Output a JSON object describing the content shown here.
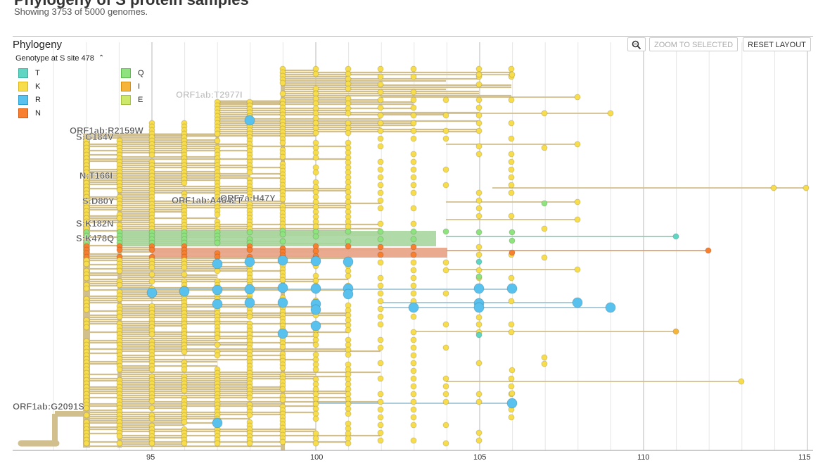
{
  "header": {
    "title": "Phylogeny of S protein samples",
    "subtitle": "Showing 3753 of 5000 genomes."
  },
  "panel": {
    "title": "Phylogeny",
    "legend_title": "Genotype at S site 478",
    "legend": [
      {
        "label": "T",
        "color": "#5fd6c4",
        "border": "#39b3a0"
      },
      {
        "label": "K",
        "color": "#f7dc4c",
        "border": "#d9b51a"
      },
      {
        "label": "R",
        "color": "#58c1ee",
        "border": "#2a9fd0"
      },
      {
        "label": "N",
        "color": "#f77f2e",
        "border": "#d45a0f"
      },
      {
        "label": "Q",
        "color": "#8fe37f",
        "border": "#5cb94b"
      },
      {
        "label": "I",
        "color": "#f6b53a",
        "border": "#d18e12"
      },
      {
        "label": "E",
        "color": "#cde86a",
        "border": "#a4c23b"
      }
    ]
  },
  "toolbar": {
    "zoom_icon": "magnifier-icon",
    "zoom_selected": "ZOOM TO SELECTED",
    "reset_layout": "RESET LAYOUT"
  },
  "mutations": [
    {
      "text": "ORF1ab:T2977I",
      "faded": true
    },
    {
      "text": "ORF1ab:R2159W",
      "faded": false
    },
    {
      "text": "S:G184V",
      "faded": false
    },
    {
      "text": "N:T166I",
      "faded": false
    },
    {
      "text": "S:D80Y",
      "faded": false
    },
    {
      "text": "ORF1ab:A4642T",
      "faded": false
    },
    {
      "text": "ORF7a:H47Y",
      "faded": false
    },
    {
      "text": "S:K182N",
      "faded": false
    },
    {
      "text": "S:K478Q",
      "faded": false
    },
    {
      "text": "ORF1ab:G2091S",
      "faded": false
    }
  ],
  "axis": {
    "ticks": [
      "95",
      "100",
      "105",
      "110",
      "115"
    ]
  },
  "colors": {
    "branch": "#d2bf8e",
    "branch_dark": "#c8b27a",
    "grid": "#e6e6e6",
    "K": "#f7dc4c",
    "R": "#58c1ee",
    "Q": "#8fe37f",
    "N": "#f77f2e",
    "T": "#5fd6c4",
    "I": "#f6b53a"
  }
}
